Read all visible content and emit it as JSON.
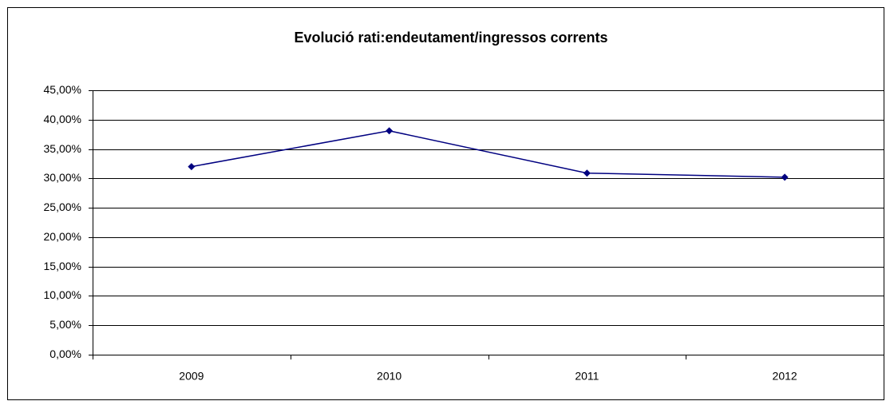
{
  "chart_data": {
    "type": "line",
    "title": "Evolució rati:endeutament/ingressos corrents",
    "categories": [
      "2009",
      "2010",
      "2011",
      "2012"
    ],
    "series": [
      {
        "name": null,
        "color": "#000080",
        "values": [
          32.0,
          38.1,
          30.9,
          30.2
        ]
      }
    ],
    "ylim": [
      0,
      45
    ],
    "yticks": [
      {
        "value": 0,
        "label": "0,00%"
      },
      {
        "value": 5,
        "label": "5,00%"
      },
      {
        "value": 10,
        "label": "10,00%"
      },
      {
        "value": 15,
        "label": "15,00%"
      },
      {
        "value": 20,
        "label": "20,00%"
      },
      {
        "value": 25,
        "label": "25,00%"
      },
      {
        "value": 30,
        "label": "30,00%"
      },
      {
        "value": 35,
        "label": "35,00%"
      },
      {
        "value": 40,
        "label": "40,00%"
      },
      {
        "value": 45,
        "label": "45,00%"
      }
    ],
    "grid": true
  }
}
